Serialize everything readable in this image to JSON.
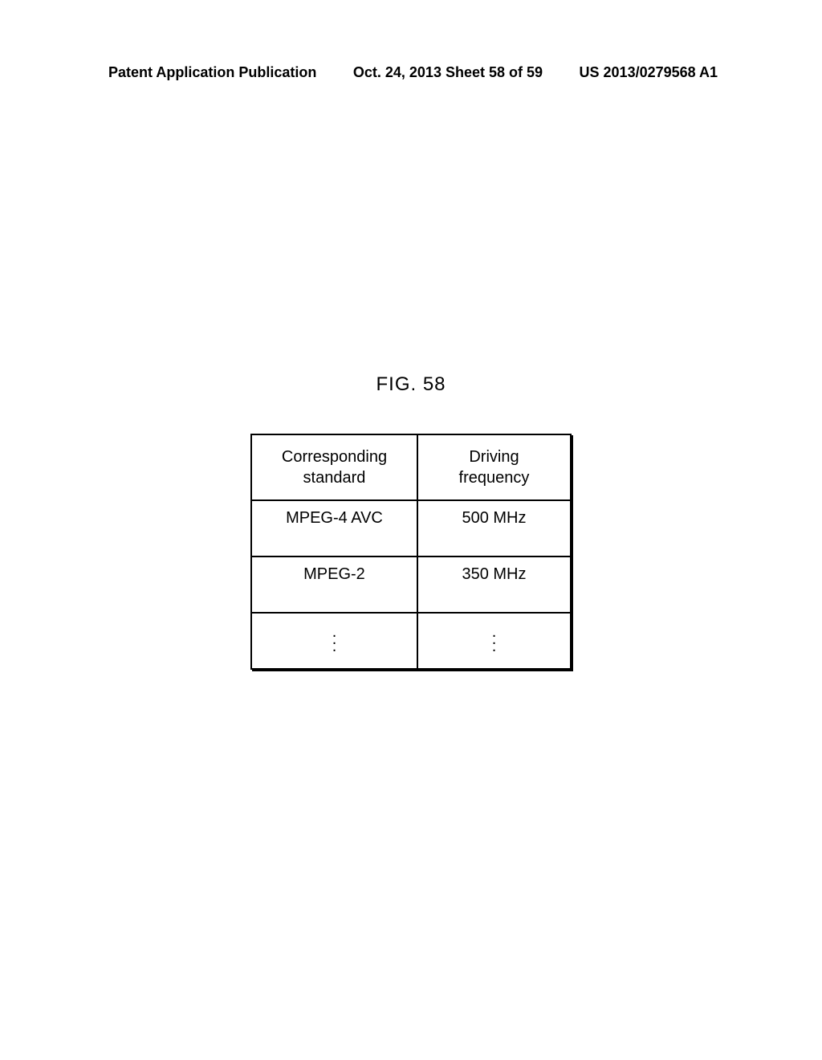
{
  "header": {
    "left": "Patent Application Publication",
    "center": "Oct. 24, 2013  Sheet 58 of 59",
    "right": "US 2013/0279568 A1"
  },
  "figure": {
    "label": "FIG. 58"
  },
  "table": {
    "type": "table",
    "columns": [
      {
        "header_line1": "Corresponding",
        "header_line2": "standard",
        "width": "52%"
      },
      {
        "header_line1": "Driving",
        "header_line2": "frequency",
        "width": "48%"
      }
    ],
    "rows": [
      {
        "standard": "MPEG-4 AVC",
        "frequency": "500 MHz"
      },
      {
        "standard": "MPEG-2",
        "frequency": "350 MHz"
      }
    ],
    "ellipsis": "⋮",
    "border_color": "#000000",
    "background_color": "#ffffff",
    "font_size": 20,
    "shadow_color": "#000000"
  }
}
